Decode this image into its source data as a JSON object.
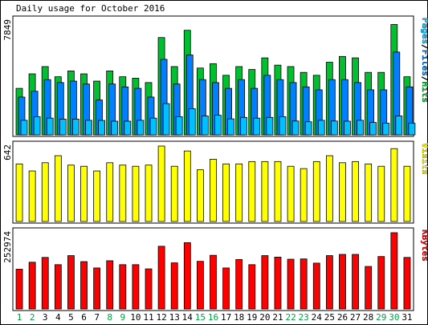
{
  "chart_data": {
    "type": "bar",
    "title": "Daily usage for October 2016",
    "days": [
      "1",
      "2",
      "3",
      "4",
      "5",
      "6",
      "7",
      "8",
      "9",
      "10",
      "11",
      "12",
      "13",
      "14",
      "15",
      "16",
      "17",
      "18",
      "19",
      "20",
      "21",
      "22",
      "23",
      "24",
      "25",
      "26",
      "27",
      "28",
      "29",
      "30",
      "31"
    ],
    "weekend_days": [
      "1",
      "2",
      "8",
      "9",
      "15",
      "16",
      "22",
      "23",
      "29",
      "30"
    ],
    "colors": {
      "hits": "#00c030",
      "files": "#0080ff",
      "pages": "#00c0ff",
      "visits": "#ffff00",
      "kbytes": "#ff0000",
      "weekday_label": "#000000",
      "weekend_label": "#00a040"
    },
    "panels": [
      {
        "id": "top",
        "max_label": "7849",
        "ymax": 7849,
        "side_labels": [
          {
            "text": "Pages",
            "color": "#00c0ff"
          },
          {
            "text": "/",
            "color": "#000000"
          },
          {
            "text": "Files",
            "color": "#0080ff"
          },
          {
            "text": "/",
            "color": "#000000"
          },
          {
            "text": "Hits",
            "color": "#00c030"
          }
        ],
        "series": [
          {
            "key": "hits",
            "color": "#00c030",
            "values": [
              3200,
              4200,
              4700,
              4000,
              4400,
              4200,
              3700,
              4400,
              4000,
              3900,
              3600,
              6700,
              4700,
              7200,
              4600,
              4900,
              4100,
              4700,
              4500,
              5300,
              4800,
              4700,
              4300,
              4100,
              5000,
              5400,
              5300,
              4300,
              4300,
              7600,
              4000
            ]
          },
          {
            "key": "files",
            "color": "#0080ff",
            "values": [
              2600,
              3000,
              3800,
              3600,
              3700,
              3500,
              2400,
              3500,
              3300,
              3200,
              2600,
              5200,
              3500,
              5500,
              3800,
              3600,
              3200,
              3800,
              3200,
              4100,
              3800,
              3600,
              3300,
              3100,
              3800,
              3800,
              3600,
              3100,
              3100,
              5700,
              3300
            ]
          },
          {
            "key": "pages",
            "color": "#00c0ff",
            "values": [
              1000,
              1250,
              1150,
              1080,
              1080,
              1000,
              990,
              940,
              940,
              1000,
              1150,
              2150,
              1250,
              1800,
              1300,
              1350,
              1100,
              1200,
              1150,
              1200,
              1250,
              950,
              900,
              1000,
              950,
              940,
              1000,
              850,
              800,
              1300,
              800
            ]
          }
        ]
      },
      {
        "id": "mid",
        "max_label": "642",
        "ymax": 642,
        "side_labels": [
          {
            "text": "Visits",
            "color": "#ffff00"
          }
        ],
        "series": [
          {
            "key": "visits",
            "color": "#ffff00",
            "values": [
              490,
              430,
              500,
              560,
              480,
              470,
              430,
              500,
              480,
              470,
              480,
              642,
              470,
              600,
              440,
              530,
              490,
              490,
              510,
              510,
              510,
              470,
              450,
              510,
              560,
              500,
              510,
              490,
              470,
              620,
              470
            ]
          }
        ]
      },
      {
        "id": "bottom",
        "max_label": "252974",
        "ymax": 252974,
        "side_labels": [
          {
            "text": "KBytes",
            "color": "#ff0000"
          }
        ],
        "series": [
          {
            "key": "kbytes",
            "color": "#ff0000",
            "values": [
              132000,
              155000,
              171000,
              147000,
              177000,
              157000,
              136000,
              160000,
              147000,
              147000,
              133000,
              208000,
              153000,
              220000,
              158000,
              178000,
              136000,
              164000,
              147000,
              177000,
              172000,
              165000,
              166000,
              152000,
              177000,
              181000,
              181000,
              141000,
              174000,
              252974,
              171000
            ]
          }
        ]
      }
    ]
  }
}
